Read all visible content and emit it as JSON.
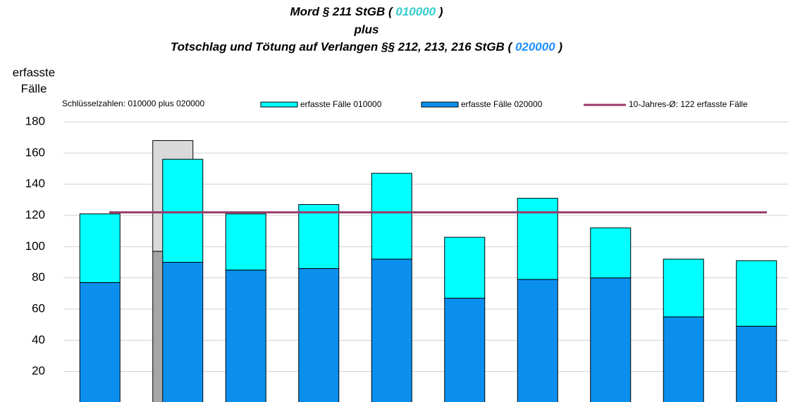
{
  "chart_data": {
    "type": "stacked_bar",
    "title": {
      "line1": [
        "Mord § 211 StGB ( ",
        "010000",
        " )"
      ],
      "line2": "plus",
      "line3": [
        "Totschlag und Tötung auf Verlangen §§ 212, 213, 216 StGB ( ",
        "020000",
        " )"
      ],
      "line1_highlight_color": "#33cccc",
      "line3_highlight_color": "#1e90ff"
    },
    "ylabel": [
      "erfasste",
      "Fälle"
    ],
    "legend_note": "Schlüsselzahlen:  010000  plus  020000",
    "categories": [
      null,
      null,
      null,
      null,
      null,
      null,
      null,
      null,
      null,
      null
    ],
    "series": [
      {
        "name": "erfasste Fälle 020000",
        "color": "#0a8fef",
        "values": [
          77,
          90,
          85,
          86,
          92,
          67,
          79,
          80,
          55,
          49
        ]
      },
      {
        "name": "erfasste Fälle 010000",
        "color": "#00ffff",
        "values": [
          44,
          66,
          36,
          41,
          55,
          39,
          52,
          32,
          37,
          42
        ]
      }
    ],
    "shadow_series": [
      {
        "color": "#a6a6a6",
        "values": [
          null,
          97,
          null,
          null,
          null,
          null,
          null,
          null,
          null,
          null
        ]
      },
      {
        "color": "#d9d9d9",
        "values": [
          null,
          71,
          null,
          null,
          null,
          null,
          null,
          null,
          null,
          null
        ]
      }
    ],
    "average": {
      "name": "10-Jahres-Ø: 122 erfasste Fälle",
      "value": 122,
      "color": "#9b3a6b"
    },
    "ylim": [
      0,
      180
    ],
    "yticks": [
      20,
      40,
      60,
      80,
      100,
      120,
      140,
      160,
      180
    ],
    "grid": true
  }
}
